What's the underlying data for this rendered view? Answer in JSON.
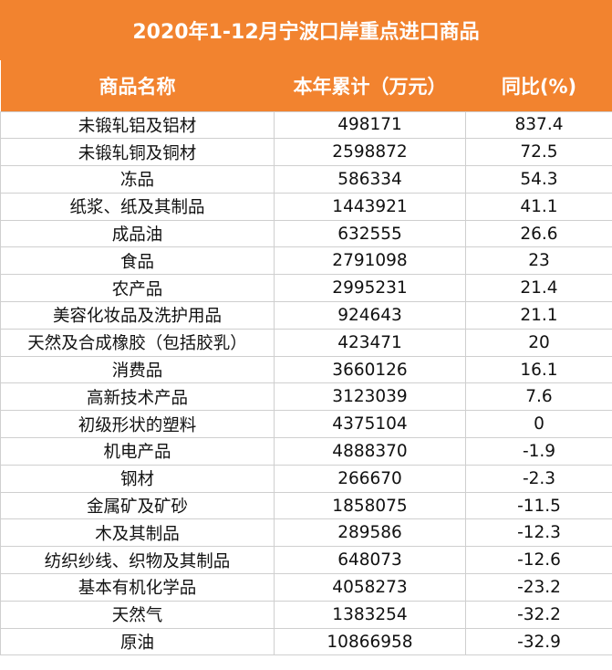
{
  "title": "2020年1-12月宁波口岸重点进口商品",
  "columns": [
    "商品名称",
    "本年累计（万元）",
    "同比(%)"
  ],
  "rows": [
    {
      "name": "未锻轧铝及铝材",
      "value": "498171",
      "yoy": "837.4"
    },
    {
      "name": "未锻轧铜及铜材",
      "value": "2598872",
      "yoy": "72.5"
    },
    {
      "name": "冻品",
      "value": "586334",
      "yoy": "54.3"
    },
    {
      "name": "纸浆、纸及其制品",
      "value": "1443921",
      "yoy": "41.1"
    },
    {
      "name": "成品油",
      "value": "632555",
      "yoy": "26.6"
    },
    {
      "name": "食品",
      "value": "2791098",
      "yoy": "23"
    },
    {
      "name": "农产品",
      "value": "2995231",
      "yoy": "21.4"
    },
    {
      "name": "美容化妆品及洗护用品",
      "value": "924643",
      "yoy": "21.1"
    },
    {
      "name": "天然及合成橡胶（包括胶乳）",
      "value": "423471",
      "yoy": "20"
    },
    {
      "name": "消费品",
      "value": "3660126",
      "yoy": "16.1"
    },
    {
      "name": "高新技术产品",
      "value": "3123039",
      "yoy": "7.6"
    },
    {
      "name": "初级形状的塑料",
      "value": "4375104",
      "yoy": "0"
    },
    {
      "name": "机电产品",
      "value": "4888370",
      "yoy": "-1.9"
    },
    {
      "name": "钢材",
      "value": "266670",
      "yoy": "-2.3"
    },
    {
      "name": "金属矿及矿砂",
      "value": "1858075",
      "yoy": "-11.5"
    },
    {
      "name": "木及其制品",
      "value": "289586",
      "yoy": "-12.3"
    },
    {
      "name": "纺织纱线、织物及其制品",
      "value": "648073",
      "yoy": "-12.6"
    },
    {
      "name": "基本有机化学品",
      "value": "4058273",
      "yoy": "-23.2"
    },
    {
      "name": "天然气",
      "value": "1383254",
      "yoy": "-32.2"
    },
    {
      "name": "原油",
      "value": "10866958",
      "yoy": "-32.9"
    }
  ],
  "colors": {
    "header_bg": "#f2832f",
    "header_text": "#ffffff",
    "grid": "#cfcfcf"
  }
}
